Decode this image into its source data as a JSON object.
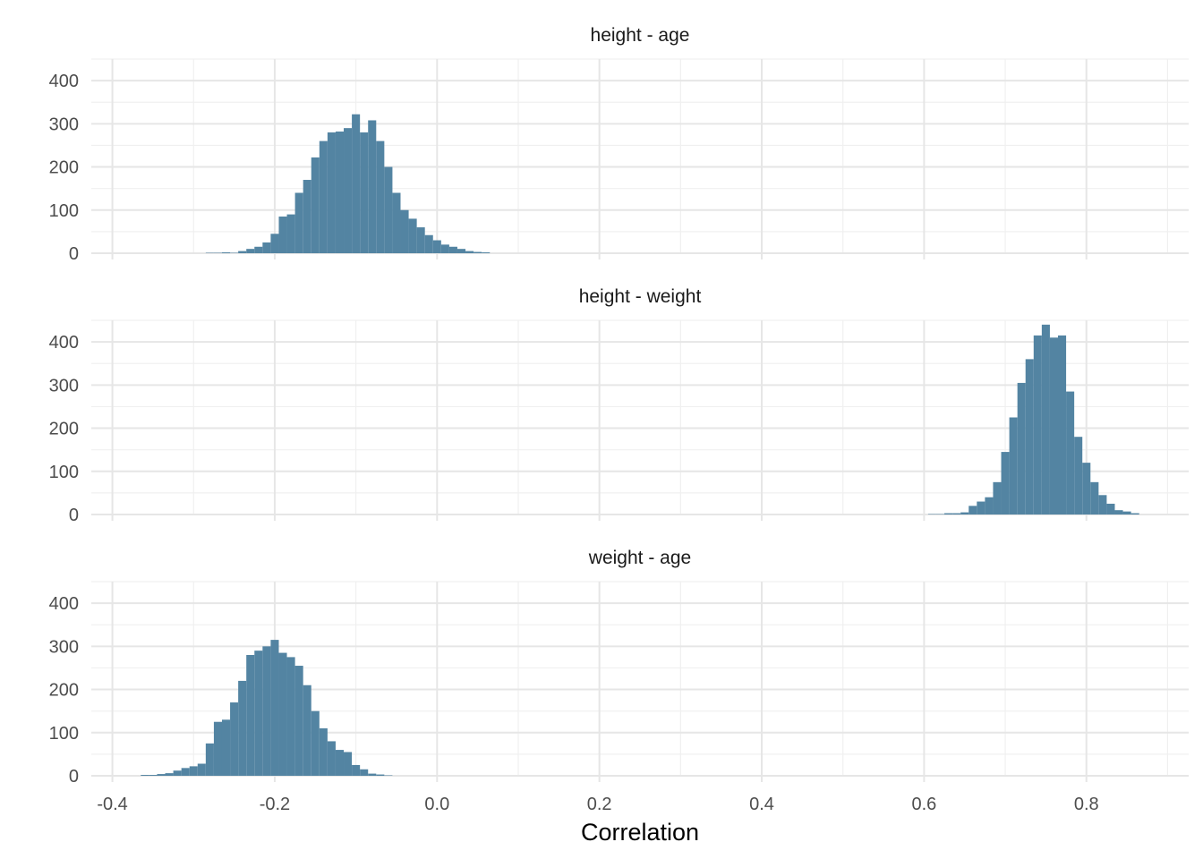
{
  "chart_data": {
    "type": "bar",
    "xlabel": "Correlation",
    "ylabel": "",
    "xlim": [
      -0.426,
      0.926
    ],
    "ylim": [
      0,
      450
    ],
    "x_ticks": [
      -0.4,
      -0.2,
      0.0,
      0.2,
      0.4,
      0.6,
      0.8
    ],
    "x_tick_labels": [
      "-0.4",
      "-0.2",
      "0.0",
      "0.2",
      "0.4",
      "0.6",
      "0.8"
    ],
    "y_ticks": [
      0,
      100,
      200,
      300,
      400
    ],
    "y_tick_labels": [
      "0",
      "100",
      "200",
      "300",
      "400"
    ],
    "bin_width": 0.01,
    "fill_color": "#5384a2",
    "grid": true,
    "panels": [
      {
        "title": "height - age",
        "bins_start": -0.285,
        "counts": [
          1,
          1,
          2,
          1,
          5,
          10,
          15,
          25,
          45,
          85,
          90,
          140,
          170,
          222,
          260,
          280,
          282,
          290,
          322,
          280,
          308,
          260,
          200,
          140,
          100,
          80,
          60,
          42,
          30,
          20,
          15,
          10,
          5,
          3,
          2
        ]
      },
      {
        "title": "height - weight",
        "bins_start": 0.605,
        "counts": [
          1,
          1,
          3,
          3,
          5,
          20,
          30,
          40,
          75,
          145,
          225,
          305,
          360,
          415,
          440,
          410,
          415,
          285,
          180,
          120,
          75,
          45,
          25,
          10,
          7,
          3
        ]
      },
      {
        "title": "weight - age",
        "bins_start": -0.365,
        "counts": [
          2,
          2,
          4,
          6,
          12,
          18,
          22,
          28,
          75,
          125,
          130,
          170,
          220,
          280,
          290,
          300,
          315,
          285,
          275,
          255,
          210,
          150,
          110,
          80,
          60,
          55,
          25,
          15,
          5,
          3,
          1
        ]
      }
    ]
  }
}
